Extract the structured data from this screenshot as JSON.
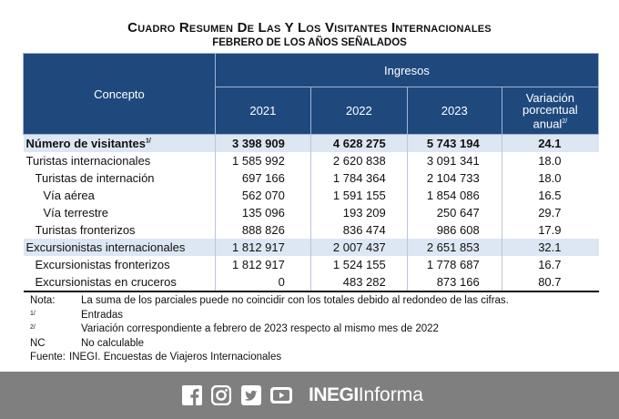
{
  "title": "Cuadro resumen de las y los visitantes internacionales",
  "subtitle": "febrero de los años señalados",
  "table": {
    "header_concepto": "Concepto",
    "header_ingresos": "Ingresos",
    "years": [
      "2021",
      "2022",
      "2023"
    ],
    "variacion_line1": "Variación",
    "variacion_line2": "porcentual",
    "variacion_line3": "anual",
    "variacion_note": "2/",
    "rows": [
      {
        "concepto": "Número de visitantes",
        "note": "1/",
        "v2021": "3 398 909",
        "v2022": "4 628 275",
        "v2023": "5 743 194",
        "var": "24.1"
      },
      {
        "concepto": "Turistas internacionales",
        "v2021": "1 585 992",
        "v2022": "2 620 838",
        "v2023": "3 091 341",
        "var": "18.0"
      },
      {
        "concepto": "Turistas de internación",
        "v2021": "697 166",
        "v2022": "1 784 364",
        "v2023": "2 104 733",
        "var": "18.0"
      },
      {
        "concepto": "Vía aérea",
        "v2021": "562 070",
        "v2022": "1 591 155",
        "v2023": "1 854 086",
        "var": "16.5"
      },
      {
        "concepto": "Vía terrestre",
        "v2021": "135 096",
        "v2022": "193 209",
        "v2023": "250 647",
        "var": "29.7"
      },
      {
        "concepto": "Turistas fronterizos",
        "v2021": "888 826",
        "v2022": "836 474",
        "v2023": "986 608",
        "var": "17.9"
      },
      {
        "concepto": "Excursionistas internacionales",
        "v2021": "1 812 917",
        "v2022": "2 007 437",
        "v2023": "2 651 853",
        "var": "32.1"
      },
      {
        "concepto": "Excursionistas fronterizos",
        "v2021": "1 812 917",
        "v2022": "1 524 155",
        "v2023": "1 778 687",
        "var": "16.7"
      },
      {
        "concepto": "Excursionistas en cruceros",
        "v2021": "0",
        "v2022": "483 282",
        "v2023": "873 166",
        "var": "80.7"
      }
    ]
  },
  "notes": [
    {
      "key": "Nota:",
      "text": "La suma de los parciales puede no coincidir con los totales debido al redondeo de las cifras."
    },
    {
      "key": "1/",
      "text": "Entradas"
    },
    {
      "key": "2/",
      "text": "Variación correspondiente a febrero de 2023 respecto al mismo mes de 2022"
    },
    {
      "key": "NC",
      "text": "No calculable"
    },
    {
      "key": "Fuente:",
      "text": "INEGI. Encuestas de Viajeros Internacionales"
    }
  ],
  "footer": {
    "social_icons": [
      "facebook-icon",
      "instagram-icon",
      "twitter-icon",
      "youtube-icon"
    ],
    "brand_strong": "INEGI",
    "brand_light": "Informa",
    "background": "#7f7f7f"
  },
  "colors": {
    "header_blue": "#1f497d",
    "row_shade": "#dde7f3"
  }
}
